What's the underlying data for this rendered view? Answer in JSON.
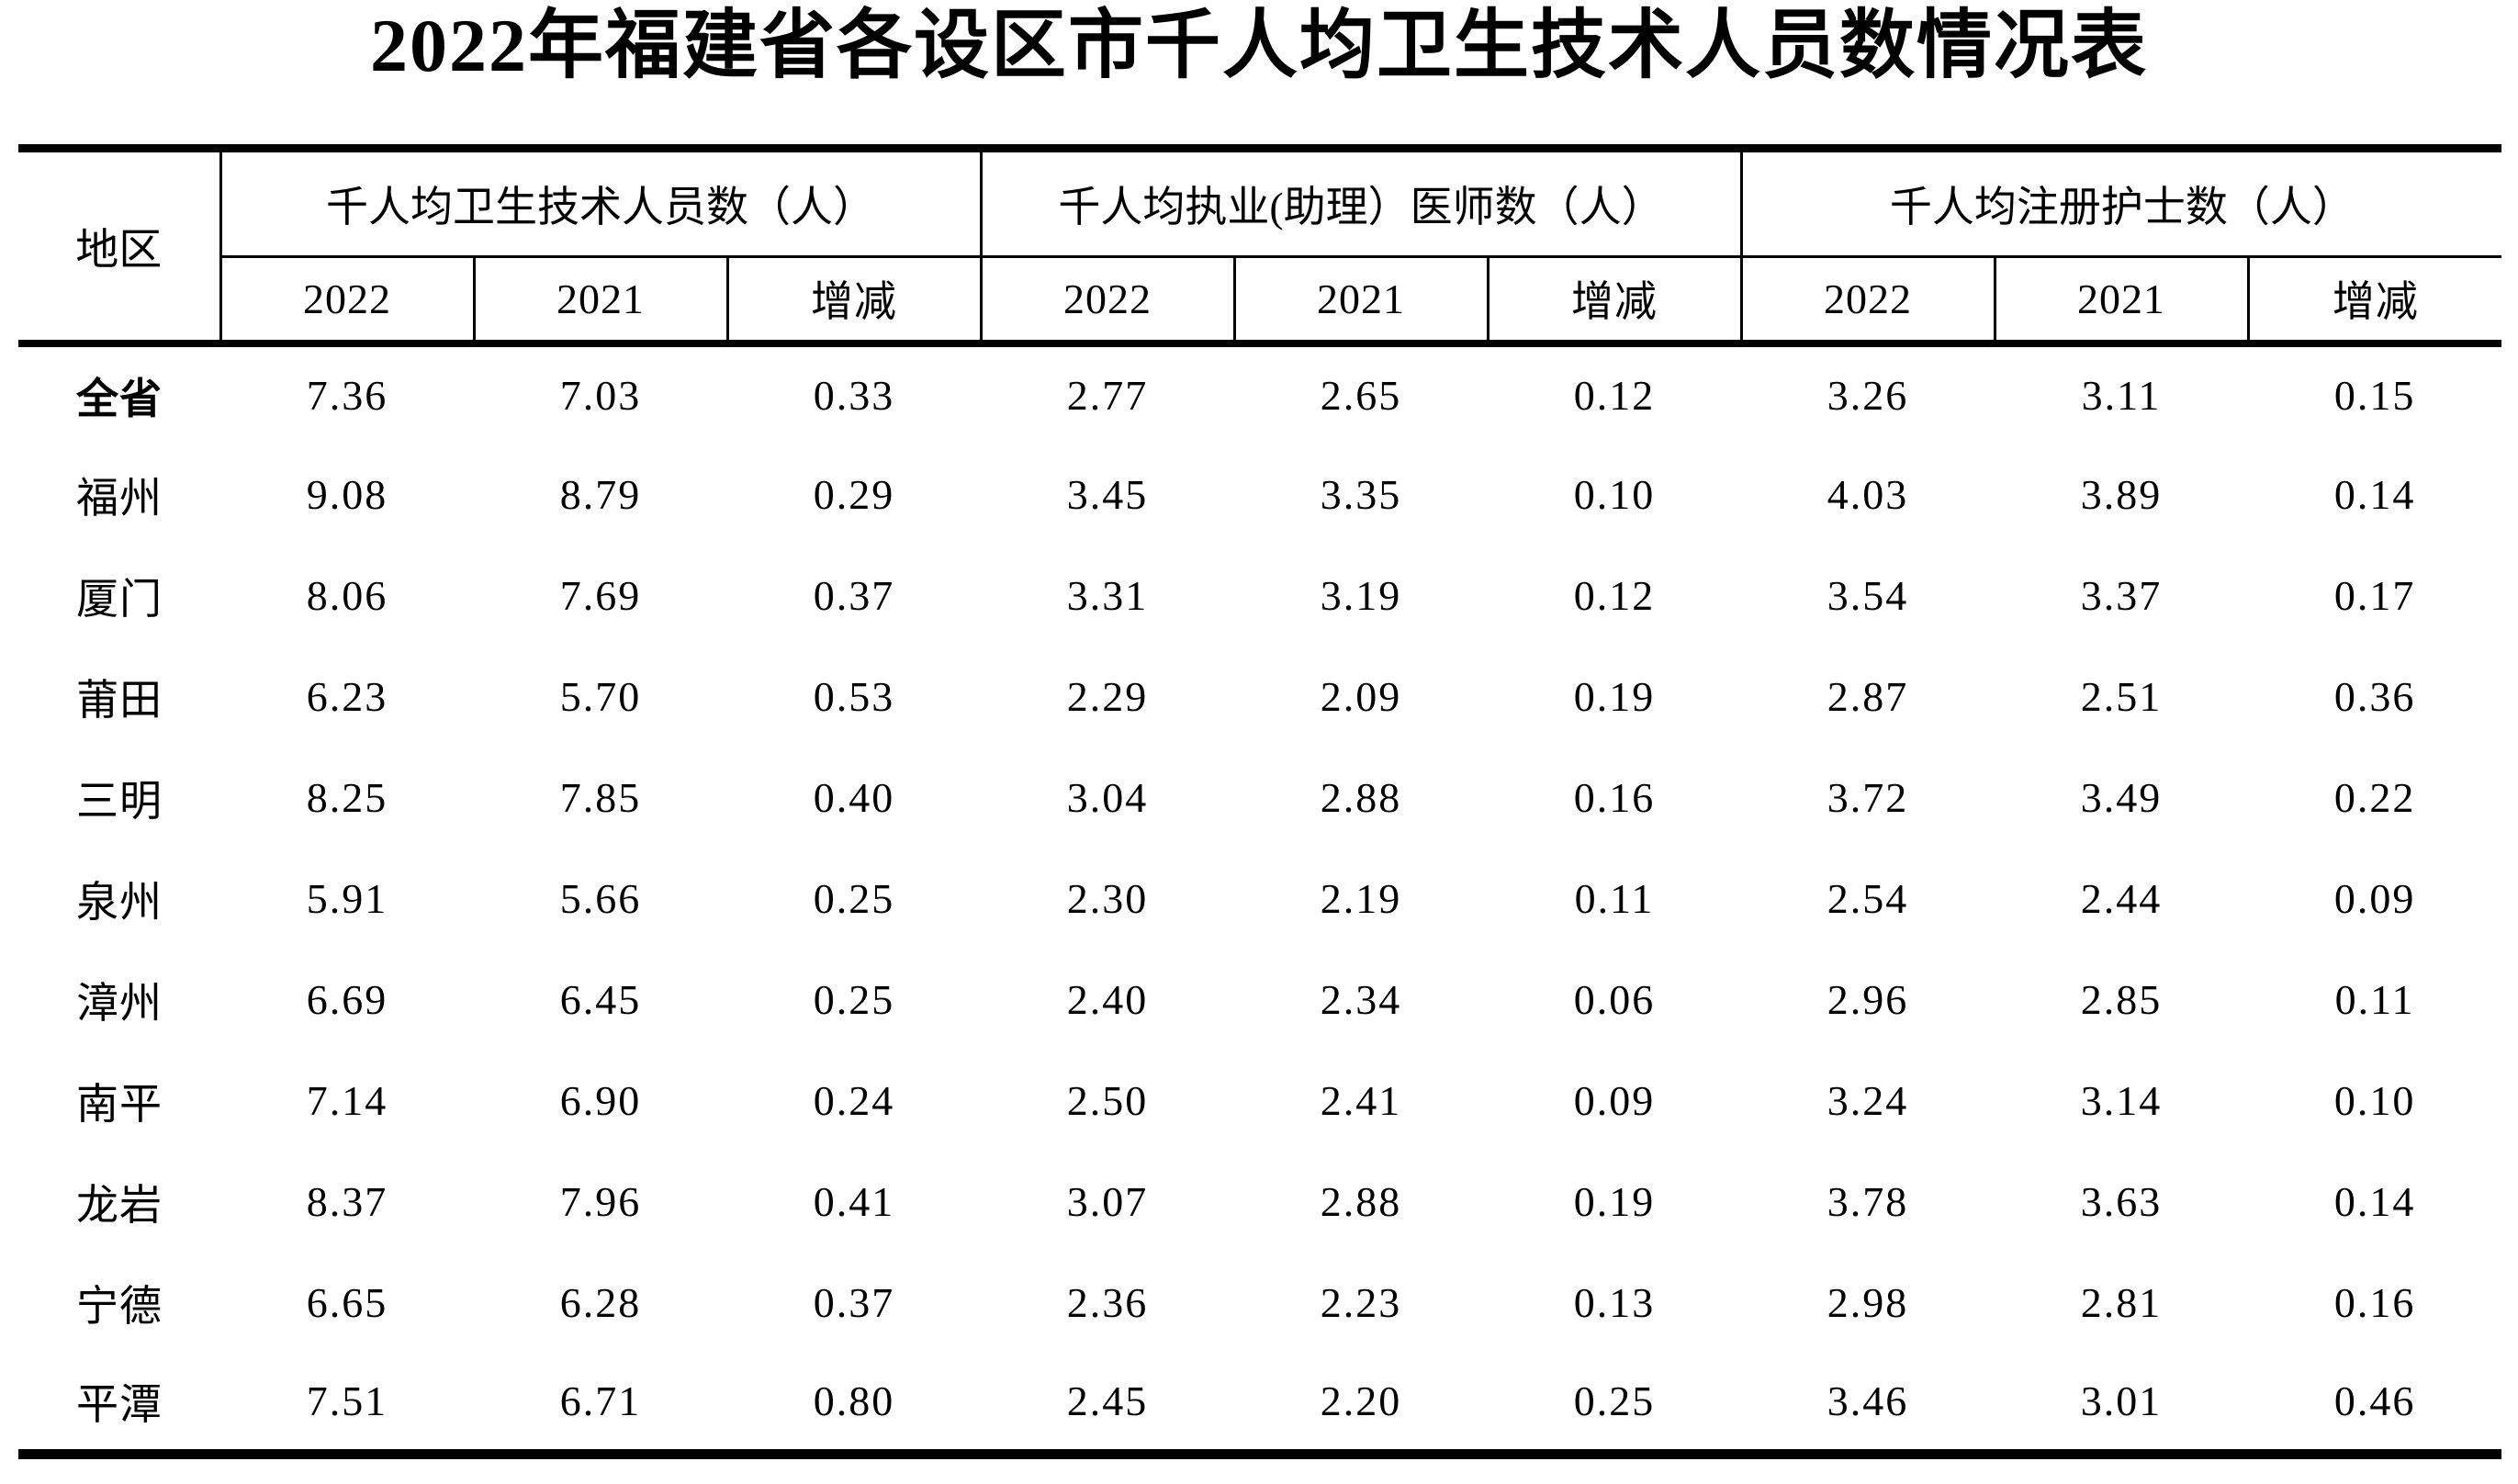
{
  "title": "2022年福建省各设区市千人均卫生技术人员数情况表",
  "table": {
    "region_header": "地区",
    "groups": [
      {
        "label": "千人均卫生技术人员数（人）"
      },
      {
        "label": "千人均执业(助理）医师数（人）"
      },
      {
        "label": "千人均注册护士数（人）"
      }
    ],
    "sub_headers": [
      "2022",
      "2021",
      "增减"
    ],
    "rows": [
      {
        "region": "全省",
        "bold": true,
        "values": [
          "7.36",
          "7.03",
          "0.33",
          "2.77",
          "2.65",
          "0.12",
          "3.26",
          "3.11",
          "0.15"
        ]
      },
      {
        "region": "福州",
        "bold": false,
        "values": [
          "9.08",
          "8.79",
          "0.29",
          "3.45",
          "3.35",
          "0.10",
          "4.03",
          "3.89",
          "0.14"
        ]
      },
      {
        "region": "厦门",
        "bold": false,
        "values": [
          "8.06",
          "7.69",
          "0.37",
          "3.31",
          "3.19",
          "0.12",
          "3.54",
          "3.37",
          "0.17"
        ]
      },
      {
        "region": "莆田",
        "bold": false,
        "values": [
          "6.23",
          "5.70",
          "0.53",
          "2.29",
          "2.09",
          "0.19",
          "2.87",
          "2.51",
          "0.36"
        ]
      },
      {
        "region": "三明",
        "bold": false,
        "values": [
          "8.25",
          "7.85",
          "0.40",
          "3.04",
          "2.88",
          "0.16",
          "3.72",
          "3.49",
          "0.22"
        ]
      },
      {
        "region": "泉州",
        "bold": false,
        "values": [
          "5.91",
          "5.66",
          "0.25",
          "2.30",
          "2.19",
          "0.11",
          "2.54",
          "2.44",
          "0.09"
        ]
      },
      {
        "region": "漳州",
        "bold": false,
        "values": [
          "6.69",
          "6.45",
          "0.25",
          "2.40",
          "2.34",
          "0.06",
          "2.96",
          "2.85",
          "0.11"
        ]
      },
      {
        "region": "南平",
        "bold": false,
        "values": [
          "7.14",
          "6.90",
          "0.24",
          "2.50",
          "2.41",
          "0.09",
          "3.24",
          "3.14",
          "0.10"
        ]
      },
      {
        "region": "龙岩",
        "bold": false,
        "values": [
          "8.37",
          "7.96",
          "0.41",
          "3.07",
          "2.88",
          "0.19",
          "3.78",
          "3.63",
          "0.14"
        ]
      },
      {
        "region": "宁德",
        "bold": false,
        "values": [
          "6.65",
          "6.28",
          "0.37",
          "2.36",
          "2.23",
          "0.13",
          "2.98",
          "2.81",
          "0.16"
        ]
      },
      {
        "region": "平潭",
        "bold": false,
        "values": [
          "7.51",
          "6.71",
          "0.80",
          "2.45",
          "2.20",
          "0.25",
          "3.46",
          "3.01",
          "0.46"
        ]
      }
    ]
  }
}
